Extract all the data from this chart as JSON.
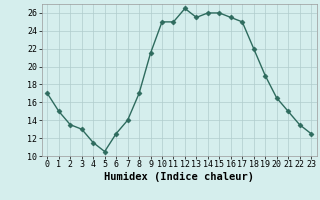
{
  "xlabel": "Humidex (Indice chaleur)",
  "x": [
    0,
    1,
    2,
    3,
    4,
    5,
    6,
    7,
    8,
    9,
    10,
    11,
    12,
    13,
    14,
    15,
    16,
    17,
    18,
    19,
    20,
    21,
    22,
    23
  ],
  "y": [
    17,
    15,
    13.5,
    13,
    11.5,
    10.5,
    12.5,
    14,
    17,
    21.5,
    25,
    25,
    26.5,
    25.5,
    26,
    26,
    25.5,
    25,
    22,
    19,
    16.5,
    15,
    13.5,
    12.5
  ],
  "ylim": [
    10,
    27
  ],
  "yticks": [
    10,
    12,
    14,
    16,
    18,
    20,
    22,
    24,
    26
  ],
  "xticks": [
    0,
    1,
    2,
    3,
    4,
    5,
    6,
    7,
    8,
    9,
    10,
    11,
    12,
    13,
    14,
    15,
    16,
    17,
    18,
    19,
    20,
    21,
    22,
    23
  ],
  "line_color": "#2e6b5e",
  "marker": "D",
  "marker_size": 2.5,
  "bg_color": "#d5eeed",
  "grid_color": "#b0cccc",
  "xlabel_fontsize": 7.5,
  "tick_fontsize": 6.0
}
